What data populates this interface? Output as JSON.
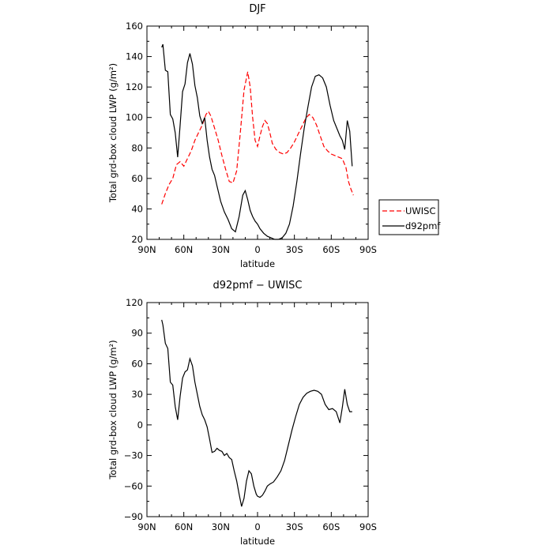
{
  "chart_data": [
    {
      "type": "line",
      "title": "DJF",
      "xlabel": "latitude",
      "ylabel": "Total grd-box cloud LWP (g/m²)",
      "xlim": [
        90,
        -90
      ],
      "ylim": [
        20,
        160
      ],
      "x_ticks": [
        90,
        60,
        30,
        0,
        -30,
        -60,
        -90
      ],
      "x_tick_labels": [
        "90N",
        "60N",
        "30N",
        "0",
        "30S",
        "60S",
        "90S"
      ],
      "y_ticks": [
        20,
        40,
        60,
        80,
        100,
        120,
        140,
        160
      ],
      "y_tick_labels": [
        "20",
        "40",
        "60",
        "80",
        "100",
        "120",
        "140",
        "160"
      ],
      "legend": {
        "placement": "outside-right"
      },
      "series": [
        {
          "name": "UWISC",
          "color": "#ff0000",
          "dash": true,
          "x": [
            78,
            75,
            72,
            69,
            66,
            63,
            60,
            57,
            54,
            51,
            48,
            45,
            42,
            40,
            38,
            35,
            32,
            29,
            26,
            23,
            20,
            17,
            14,
            11,
            8,
            6,
            4,
            2,
            0,
            -2,
            -4,
            -6,
            -8,
            -10,
            -12,
            -15,
            -18,
            -21,
            -24,
            -27,
            -30,
            -33,
            -36,
            -39,
            -42,
            -45,
            -48,
            -51,
            -54,
            -57,
            -60,
            -63,
            -66,
            -69,
            -72,
            -74,
            -76,
            -78
          ],
          "y": [
            43,
            50,
            56,
            60,
            69,
            71,
            68,
            73,
            78,
            85,
            90,
            95,
            102,
            104,
            101,
            93,
            85,
            75,
            66,
            58,
            57,
            65,
            90,
            118,
            130,
            120,
            100,
            85,
            81,
            88,
            94,
            98,
            96,
            90,
            83,
            79,
            77,
            76,
            77,
            80,
            84,
            89,
            94,
            99,
            102,
            100,
            95,
            88,
            81,
            78,
            76,
            75,
            74,
            73,
            67,
            58,
            53,
            49
          ]
        },
        {
          "name": "d92pmf",
          "color": "#000000",
          "dash": false,
          "x": [
            78,
            77,
            75,
            73,
            71,
            69,
            67,
            65,
            63,
            61,
            59,
            57,
            55,
            53,
            51,
            49,
            47,
            45,
            43,
            41,
            39,
            37,
            35,
            33,
            30,
            27,
            24,
            21,
            18,
            15,
            12,
            10,
            8,
            6,
            4,
            2,
            0,
            -2,
            -5,
            -8,
            -11,
            -14,
            -17,
            -20,
            -23,
            -26,
            -29,
            -32,
            -35,
            -38,
            -41,
            -44,
            -47,
            -50,
            -53,
            -56,
            -59,
            -62,
            -65,
            -67,
            -69,
            -71,
            -73,
            -75,
            -77
          ],
          "y": [
            146,
            148,
            131,
            130,
            102,
            99,
            90,
            74,
            95,
            117,
            122,
            136,
            142,
            135,
            121,
            113,
            101,
            96,
            100,
            85,
            74,
            66,
            62,
            55,
            45,
            38,
            33,
            27,
            25,
            35,
            49,
            52,
            46,
            39,
            35,
            32,
            30,
            27,
            24,
            22,
            21,
            20,
            20,
            21,
            24,
            30,
            42,
            58,
            76,
            93,
            107,
            120,
            127,
            128,
            126,
            120,
            108,
            98,
            92,
            88,
            85,
            79,
            98,
            91,
            68
          ]
        }
      ]
    },
    {
      "type": "line",
      "title": "d92pmf − UWISC",
      "xlabel": "latitude",
      "ylabel": "Total grd-box cloud LWP (g/m²)",
      "xlim": [
        90,
        -90
      ],
      "ylim": [
        -90,
        120
      ],
      "x_ticks": [
        90,
        60,
        30,
        0,
        -30,
        -60,
        -90
      ],
      "x_tick_labels": [
        "90N",
        "60N",
        "30N",
        "0",
        "30S",
        "60S",
        "90S"
      ],
      "y_ticks": [
        -90,
        -60,
        -30,
        0,
        30,
        60,
        90,
        120
      ],
      "y_tick_labels": [
        "−90",
        "−60",
        "−30",
        "0",
        "30",
        "60",
        "90",
        "120"
      ],
      "series": [
        {
          "color": "#000000",
          "dash": false,
          "x": [
            78,
            77,
            75,
            73,
            71,
            69,
            67,
            65,
            63,
            61,
            59,
            57,
            55,
            53,
            51,
            49,
            47,
            45,
            43,
            41,
            39,
            37,
            35,
            33,
            31,
            29,
            27,
            25,
            23,
            21,
            19,
            17,
            15,
            13,
            11,
            9,
            7,
            5,
            3,
            1,
            0,
            -2,
            -4,
            -6,
            -8,
            -10,
            -13,
            -16,
            -19,
            -22,
            -25,
            -28,
            -31,
            -34,
            -37,
            -40,
            -43,
            -46,
            -49,
            -52,
            -55,
            -58,
            -61,
            -64,
            -67,
            -69,
            -71,
            -73,
            -75,
            -77
          ],
          "y": [
            103,
            98,
            80,
            75,
            42,
            39,
            18,
            5,
            28,
            46,
            52,
            54,
            65,
            58,
            42,
            30,
            18,
            10,
            5,
            -2,
            -14,
            -27,
            -26,
            -23,
            -25,
            -26,
            -30,
            -28,
            -32,
            -34,
            -45,
            -55,
            -68,
            -80,
            -72,
            -55,
            -45,
            -48,
            -60,
            -68,
            -70,
            -71,
            -69,
            -65,
            -60,
            -58,
            -56,
            -51,
            -45,
            -35,
            -20,
            -5,
            8,
            20,
            27,
            31,
            33,
            34,
            33,
            30,
            20,
            15,
            16,
            13,
            2,
            17,
            35,
            20,
            13,
            13
          ]
        }
      ]
    }
  ]
}
